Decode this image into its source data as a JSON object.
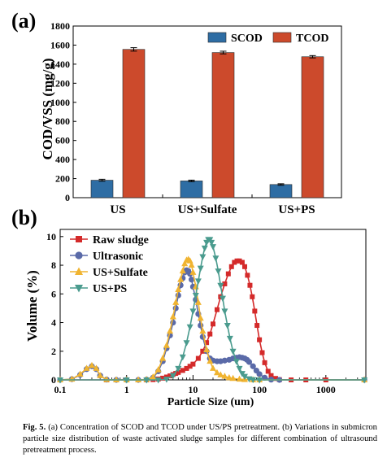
{
  "caption": {
    "label": "Fig. 5.",
    "text": "(a) Concentration of SCOD and TCOD under US/PS pretreatment. (b) Variations in submicron particle size distribution of waste activated sludge samples for different combination of ultrasound pretreatment process."
  },
  "chart_data": [
    {
      "panel": "(a)",
      "type": "bar",
      "categories": [
        "US",
        "US+Sulfate",
        "US+PS"
      ],
      "series": [
        {
          "name": "SCOD",
          "color": "#2e6da4",
          "values": [
            183,
            176,
            138
          ],
          "errors": [
            10,
            8,
            8
          ]
        },
        {
          "name": "TCOD",
          "color": "#cc4a2c",
          "values": [
            1555,
            1522,
            1478
          ],
          "errors": [
            18,
            14,
            12
          ]
        }
      ],
      "ylabel": "COD/VSS (mg/g)",
      "ylim": [
        0,
        1800
      ],
      "yticks": [
        0,
        200,
        400,
        600,
        800,
        1000,
        1200,
        1400,
        1600,
        1800
      ],
      "legend": "top-right",
      "grid": false
    },
    {
      "panel": "(b)",
      "type": "line",
      "xscale": "log",
      "xlabel": "Particle Size (um)",
      "ylabel": "Volume (%)",
      "xlim": [
        0.1,
        4000
      ],
      "ylim": [
        0,
        10.5
      ],
      "xticks": [
        0.1,
        1,
        10,
        100,
        1000
      ],
      "xticklabels": [
        "0.1",
        "1",
        "10",
        "100",
        "1000"
      ],
      "yticks": [
        0,
        2,
        4,
        6,
        8,
        10
      ],
      "legend": "top-left",
      "grid": false,
      "series": [
        {
          "name": "Raw sludge",
          "color": "#d42a2a",
          "marker": "square",
          "x": [
            0.1,
            0.5,
            1,
            2,
            2.5,
            3,
            3.5,
            4,
            4.5,
            5,
            5.5,
            6,
            7,
            8,
            9,
            10,
            12,
            14,
            16,
            18,
            20,
            23,
            26,
            30,
            34,
            38,
            42,
            46,
            50,
            55,
            60,
            66,
            72,
            78,
            85,
            92,
            100,
            110,
            120,
            135,
            150,
            175,
            200,
            300,
            500,
            1000,
            3800
          ],
          "y": [
            0,
            0,
            0,
            0,
            0.02,
            0.06,
            0.12,
            0.2,
            0.28,
            0.37,
            0.45,
            0.52,
            0.66,
            0.8,
            0.95,
            1.1,
            1.5,
            2.0,
            2.6,
            3.2,
            3.9,
            4.9,
            5.8,
            6.7,
            7.4,
            7.9,
            8.2,
            8.3,
            8.3,
            8.2,
            7.9,
            7.3,
            6.6,
            5.8,
            4.8,
            3.8,
            2.8,
            1.9,
            1.2,
            0.6,
            0.3,
            0.1,
            0.02,
            0,
            0,
            0,
            0
          ]
        },
        {
          "name": "Ultrasonic",
          "color": "#5a6aa8",
          "marker": "circle",
          "x": [
            0.1,
            0.15,
            0.2,
            0.25,
            0.3,
            0.35,
            0.4,
            0.5,
            0.7,
            1,
            1.5,
            2,
            2.5,
            3,
            3.5,
            4,
            4.5,
            5,
            5.5,
            6,
            6.5,
            7,
            7.5,
            8,
            8.5,
            9,
            9.5,
            10,
            11,
            12,
            13,
            14,
            16,
            18,
            20,
            23,
            26,
            30,
            35,
            40,
            45,
            50,
            55,
            60,
            65,
            70,
            80,
            90,
            100,
            120,
            150,
            200,
            3800
          ],
          "y": [
            0,
            0.05,
            0.35,
            0.75,
            0.95,
            0.75,
            0.3,
            0.02,
            0,
            0,
            0,
            0.02,
            0.15,
            0.6,
            1.3,
            2.2,
            3.1,
            4.0,
            5.0,
            5.9,
            6.6,
            7.1,
            7.5,
            7.65,
            7.6,
            7.4,
            7.0,
            6.5,
            5.6,
            4.6,
            3.8,
            3.0,
            2.0,
            1.5,
            1.35,
            1.3,
            1.3,
            1.35,
            1.4,
            1.5,
            1.55,
            1.58,
            1.55,
            1.5,
            1.4,
            1.25,
            0.95,
            0.65,
            0.4,
            0.15,
            0.02,
            0,
            0
          ]
        },
        {
          "name": "US+Sulfate",
          "color": "#f0b431",
          "marker": "triangle-up",
          "x": [
            0.1,
            0.15,
            0.2,
            0.25,
            0.3,
            0.35,
            0.4,
            0.5,
            0.7,
            1,
            1.5,
            2,
            2.5,
            3,
            3.5,
            4,
            4.5,
            5,
            5.5,
            6,
            6.5,
            7,
            7.5,
            8,
            8.5,
            9,
            9.5,
            10,
            11,
            12,
            13,
            14,
            16,
            18,
            20,
            23,
            26,
            30,
            35,
            40,
            50,
            60,
            80,
            100,
            3800
          ],
          "y": [
            0,
            0.05,
            0.4,
            0.8,
            1.0,
            0.8,
            0.3,
            0.02,
            0,
            0,
            0,
            0.03,
            0.2,
            0.7,
            1.5,
            2.4,
            3.4,
            4.4,
            5.4,
            6.3,
            7.0,
            7.6,
            8.1,
            8.35,
            8.4,
            8.3,
            8.0,
            7.5,
            6.5,
            5.4,
            4.3,
            3.4,
            2.1,
            1.3,
            0.8,
            0.5,
            0.35,
            0.25,
            0.15,
            0.1,
            0.05,
            0.02,
            0,
            0,
            0
          ]
        },
        {
          "name": "US+PS",
          "color": "#4a9b8e",
          "marker": "triangle-down",
          "x": [
            0.1,
            1,
            2,
            3,
            4,
            5,
            6,
            7,
            8,
            9,
            10,
            11,
            12,
            13,
            14,
            15,
            16,
            17,
            18,
            19,
            20,
            22,
            24,
            26,
            28,
            30,
            33,
            36,
            40,
            45,
            50,
            55,
            60,
            70,
            80,
            100,
            3800
          ],
          "y": [
            0,
            0,
            0,
            0,
            0.05,
            0.3,
            0.8,
            1.6,
            2.6,
            3.7,
            4.8,
            5.9,
            6.9,
            7.8,
            8.6,
            9.2,
            9.6,
            9.8,
            9.8,
            9.6,
            9.3,
            8.5,
            7.6,
            6.6,
            5.7,
            4.8,
            3.8,
            2.9,
            2.0,
            1.3,
            0.8,
            0.45,
            0.25,
            0.08,
            0.02,
            0,
            0
          ]
        }
      ]
    }
  ]
}
